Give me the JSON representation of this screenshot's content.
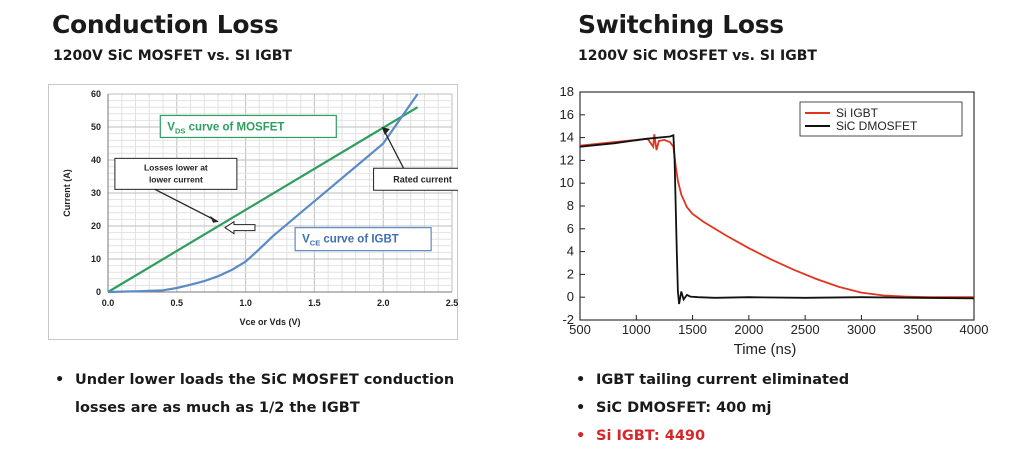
{
  "left": {
    "title": "Conduction Loss",
    "subtitle": "1200V SiC MOSFET vs. SI IGBT",
    "bullets": [
      {
        "text_line1": "Under lower loads the SiC MOSFET conduction",
        "text_line2": "losses are as much as 1/2 the IGBT",
        "color": "#1a1a1a"
      }
    ]
  },
  "right": {
    "title": "Switching Loss",
    "subtitle": "1200V SiC MOSFET vs. SI IGBT",
    "bullets": [
      {
        "text": "IGBT tailing current eliminated",
        "color": "#1a1a1a"
      },
      {
        "text": "SiC DMOSFET: 400 mj",
        "color": "#1a1a1a"
      },
      {
        "text": "Si IGBT: 4490",
        "color": "#d62728"
      }
    ]
  },
  "chart_data": [
    {
      "type": "line",
      "title": "",
      "xlabel": "Vce or Vds (V)",
      "ylabel": "Current (A)",
      "xlim": [
        0.0,
        2.5
      ],
      "ylim": [
        0,
        60
      ],
      "xticks": [
        "0.0",
        "0.5",
        "1.0",
        "1.5",
        "2.0",
        "2.5"
      ],
      "yticks": [
        "0",
        "10",
        "20",
        "30",
        "40",
        "50",
        "60"
      ],
      "grid": true,
      "series": [
        {
          "name": "MOSFET",
          "color": "#2e9e5e",
          "x": [
            0.0,
            2.25
          ],
          "y": [
            0,
            56
          ]
        },
        {
          "name": "IGBT",
          "color": "#5b8bc6",
          "x": [
            0.0,
            0.2,
            0.4,
            0.5,
            0.6,
            0.7,
            0.8,
            0.9,
            1.0,
            1.1,
            1.2,
            1.4,
            1.6,
            1.8,
            2.0,
            2.25
          ],
          "y": [
            0,
            0.2,
            0.5,
            1.2,
            2.2,
            3.3,
            4.8,
            6.7,
            9.2,
            13,
            17,
            24,
            31,
            38,
            45,
            60
          ]
        }
      ],
      "annotations": {
        "mosfet_label_main": "V",
        "mosfet_label_sub": "DS",
        "mosfet_label_rest": " curve of MOSFET",
        "igbt_label_main": "V",
        "igbt_label_sub": "CE",
        "igbt_label_rest": " curve of IGBT",
        "losses_line1": "Losses lower at",
        "losses_line2": "lower current",
        "rated": "Rated current"
      }
    },
    {
      "type": "line",
      "title": "",
      "xlabel": "Time (ns)",
      "ylabel": "",
      "xlim": [
        500,
        4000
      ],
      "ylim": [
        -2,
        18
      ],
      "xticks": [
        "500",
        "1000",
        "1500",
        "2000",
        "2500",
        "3000",
        "3500",
        "4000"
      ],
      "yticks": [
        "-2",
        "0",
        "2",
        "4",
        "6",
        "8",
        "10",
        "12",
        "14",
        "16",
        "18"
      ],
      "grid": false,
      "legend_position": "top-right",
      "series": [
        {
          "name": "Si IGBT",
          "color": "#e0351f",
          "x": [
            500,
            800,
            1100,
            1150,
            1160,
            1180,
            1200,
            1250,
            1300,
            1330,
            1350,
            1370,
            1400,
            1450,
            1500,
            1600,
            1800,
            2000,
            2200,
            2400,
            2600,
            2800,
            3000,
            3200,
            3400,
            3600,
            3800,
            4000
          ],
          "y": [
            13.3,
            13.6,
            13.9,
            13.2,
            14.3,
            12.9,
            13.7,
            13.8,
            13.6,
            13.2,
            11.5,
            10.2,
            9.0,
            7.9,
            7.3,
            6.6,
            5.4,
            4.3,
            3.3,
            2.4,
            1.6,
            0.9,
            0.4,
            0.15,
            0.05,
            0.0,
            0.0,
            0.0
          ]
        },
        {
          "name": "SiC DMOSFET",
          "color": "#111111",
          "x": [
            500,
            800,
            1100,
            1300,
            1330,
            1340,
            1350,
            1360,
            1370,
            1380,
            1400,
            1420,
            1450,
            1480,
            1550,
            1700,
            2000,
            2500,
            3000,
            3500,
            4000
          ],
          "y": [
            13.2,
            13.5,
            13.9,
            14.1,
            14.2,
            12.0,
            8.0,
            4.0,
            0.5,
            -0.6,
            0.5,
            -0.2,
            0.2,
            0.05,
            0.0,
            -0.05,
            0.0,
            -0.05,
            0.0,
            -0.05,
            -0.1
          ]
        }
      ]
    }
  ]
}
